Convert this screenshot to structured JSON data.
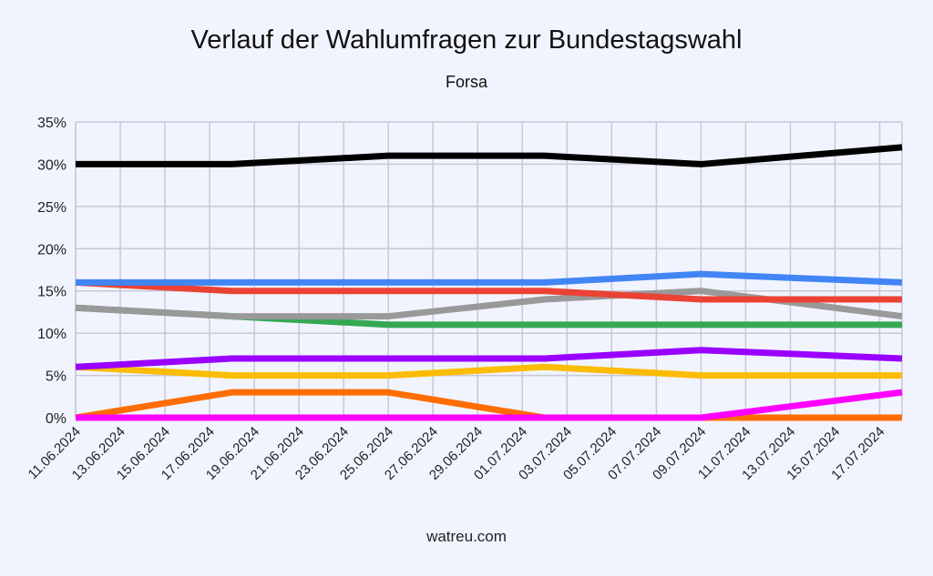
{
  "chart_data": {
    "type": "line",
    "title": "Verlauf der Wahlumfragen zur Bundestagswahl",
    "subtitle": "Forsa",
    "footer": "watreu.com",
    "xlabel": "",
    "ylabel": "",
    "ylim": [
      0,
      35
    ],
    "y_ticks": [
      "0%",
      "5%",
      "10%",
      "15%",
      "20%",
      "25%",
      "30%",
      "35%"
    ],
    "y_tick_values": [
      0,
      5,
      10,
      15,
      20,
      25,
      30,
      35
    ],
    "x_ticks": [
      "11.06.2024",
      "13.06.2024",
      "15.06.2024",
      "17.06.2024",
      "19.06.2024",
      "21.06.2024",
      "23.06.2024",
      "25.06.2024",
      "27.06.2024",
      "29.06.2024",
      "01.07.2024",
      "03.07.2024",
      "05.07.2024",
      "07.07.2024",
      "09.07.2024",
      "11.07.2024",
      "13.07.2024",
      "15.07.2024",
      "17.07.2024"
    ],
    "x_tick_days": [
      0,
      2,
      4,
      6,
      8,
      10,
      12,
      14,
      16,
      18,
      20,
      22,
      24,
      26,
      28,
      30,
      32,
      34,
      36
    ],
    "x_range_days": [
      0,
      37
    ],
    "x": [
      "11.06.2024",
      "18.06.2024",
      "25.06.2024",
      "02.07.2024",
      "09.07.2024",
      "18.07.2024"
    ],
    "x_days": [
      0,
      7,
      14,
      21,
      28,
      37
    ],
    "grid": true,
    "legend": "none",
    "series": [
      {
        "name": "black-series",
        "color": "#000000",
        "values": [
          30,
          30,
          31,
          31,
          30,
          32
        ]
      },
      {
        "name": "blue-series",
        "color": "#4285F4",
        "values": [
          16,
          16,
          16,
          16,
          17,
          16
        ]
      },
      {
        "name": "red-series",
        "color": "#EA4335",
        "values": [
          16,
          15,
          15,
          15,
          14,
          14
        ]
      },
      {
        "name": "green-series",
        "color": "#34A853",
        "values": [
          13,
          12,
          11,
          11,
          11,
          11
        ]
      },
      {
        "name": "gray-series",
        "color": "#999999",
        "values": [
          13,
          12,
          12,
          14,
          15,
          12
        ]
      },
      {
        "name": "yellow-series",
        "color": "#FBBC04",
        "values": [
          6,
          5,
          5,
          6,
          5,
          5
        ]
      },
      {
        "name": "purple-series",
        "color": "#9900FF",
        "values": [
          6,
          7,
          7,
          7,
          8,
          7
        ]
      },
      {
        "name": "orange-series",
        "color": "#FF6D01",
        "values": [
          0,
          3,
          3,
          0,
          0,
          0
        ]
      },
      {
        "name": "magenta-series",
        "color": "#FF00FF",
        "values": [
          0,
          0,
          0,
          0,
          0,
          3
        ]
      }
    ]
  }
}
